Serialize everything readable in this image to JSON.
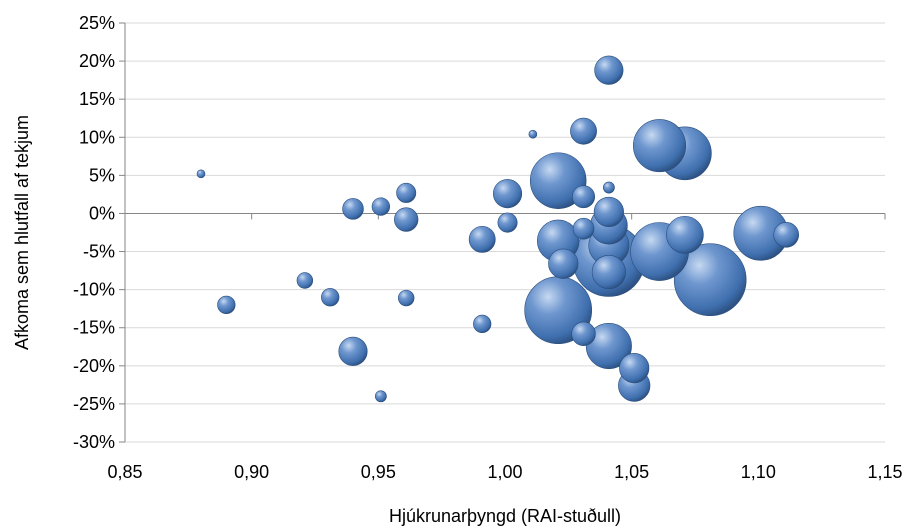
{
  "chart_data": {
    "type": "bubble",
    "xlabel": "Hjúkrunarþyngd (RAI-stuðull)",
    "ylabel": "Afkoma sem hlutfall af tekjum",
    "xlim": [
      0.85,
      1.15
    ],
    "ylim": [
      -30,
      25
    ],
    "x_ticks": [
      0.85,
      0.9,
      0.95,
      1.0,
      1.05,
      1.1,
      1.15
    ],
    "x_tick_labels": [
      "0,85",
      "0,90",
      "0,95",
      "1,00",
      "1,05",
      "1,10",
      "1,15"
    ],
    "y_ticks": [
      25,
      20,
      15,
      10,
      5,
      0,
      -5,
      -10,
      -15,
      -20,
      -25,
      -30
    ],
    "y_tick_labels": [
      "25%",
      "20%",
      "15%",
      "10%",
      "5%",
      "0%",
      "-5%",
      "-10%",
      "-15%",
      "-20%",
      "-25%",
      "-30%"
    ],
    "grid": "horizontal",
    "legend": "none",
    "colors": {
      "bubble": "#4f81bd",
      "bubble_dark": "#2a4d7c",
      "bubble_light": "#c6d9f1",
      "grid": "#d9d9d9",
      "axis": "#868686"
    },
    "points": [
      {
        "x": 0.88,
        "y": 5.2,
        "size": 1
      },
      {
        "x": 0.89,
        "y": -12.0,
        "size": 5
      },
      {
        "x": 0.921,
        "y": -8.8,
        "size": 4
      },
      {
        "x": 0.931,
        "y": -11.0,
        "size": 5
      },
      {
        "x": 0.94,
        "y": 0.6,
        "size": 7
      },
      {
        "x": 0.94,
        "y": -18.1,
        "size": 13
      },
      {
        "x": 0.951,
        "y": 0.9,
        "size": 5
      },
      {
        "x": 0.951,
        "y": -24.0,
        "size": 2
      },
      {
        "x": 0.961,
        "y": 2.7,
        "size": 6
      },
      {
        "x": 0.961,
        "y": -0.8,
        "size": 9
      },
      {
        "x": 0.961,
        "y": -11.1,
        "size": 4
      },
      {
        "x": 0.991,
        "y": -3.4,
        "size": 11
      },
      {
        "x": 0.991,
        "y": -14.5,
        "size": 5
      },
      {
        "x": 1.001,
        "y": 2.6,
        "size": 13
      },
      {
        "x": 1.001,
        "y": -1.2,
        "size": 6
      },
      {
        "x": 1.011,
        "y": 10.4,
        "size": 1
      },
      {
        "x": 1.021,
        "y": 4.3,
        "size": 50
      },
      {
        "x": 1.021,
        "y": -3.6,
        "size": 28
      },
      {
        "x": 1.021,
        "y": -12.7,
        "size": 72
      },
      {
        "x": 1.023,
        "y": -6.6,
        "size": 14
      },
      {
        "x": 1.031,
        "y": 10.8,
        "size": 11
      },
      {
        "x": 1.031,
        "y": 2.2,
        "size": 8
      },
      {
        "x": 1.031,
        "y": -2.0,
        "size": 7
      },
      {
        "x": 1.031,
        "y": -15.8,
        "size": 9
      },
      {
        "x": 1.041,
        "y": 18.8,
        "size": 13
      },
      {
        "x": 1.041,
        "y": 3.4,
        "size": 2
      },
      {
        "x": 1.041,
        "y": 0.2,
        "size": 14
      },
      {
        "x": 1.041,
        "y": -1.6,
        "size": 22
      },
      {
        "x": 1.041,
        "y": -4.2,
        "size": 26
      },
      {
        "x": 1.041,
        "y": -6.2,
        "size": 82
      },
      {
        "x": 1.041,
        "y": -7.7,
        "size": 18
      },
      {
        "x": 1.041,
        "y": -17.4,
        "size": 33
      },
      {
        "x": 1.051,
        "y": -20.3,
        "size": 14
      },
      {
        "x": 1.051,
        "y": -22.6,
        "size": 16
      },
      {
        "x": 1.061,
        "y": 8.9,
        "size": 44
      },
      {
        "x": 1.061,
        "y": -5.0,
        "size": 54
      },
      {
        "x": 1.071,
        "y": 7.9,
        "size": 45
      },
      {
        "x": 1.071,
        "y": -2.8,
        "size": 22
      },
      {
        "x": 1.081,
        "y": -8.7,
        "size": 83
      },
      {
        "x": 1.101,
        "y": -2.6,
        "size": 47
      },
      {
        "x": 1.111,
        "y": -2.8,
        "size": 10
      }
    ]
  }
}
